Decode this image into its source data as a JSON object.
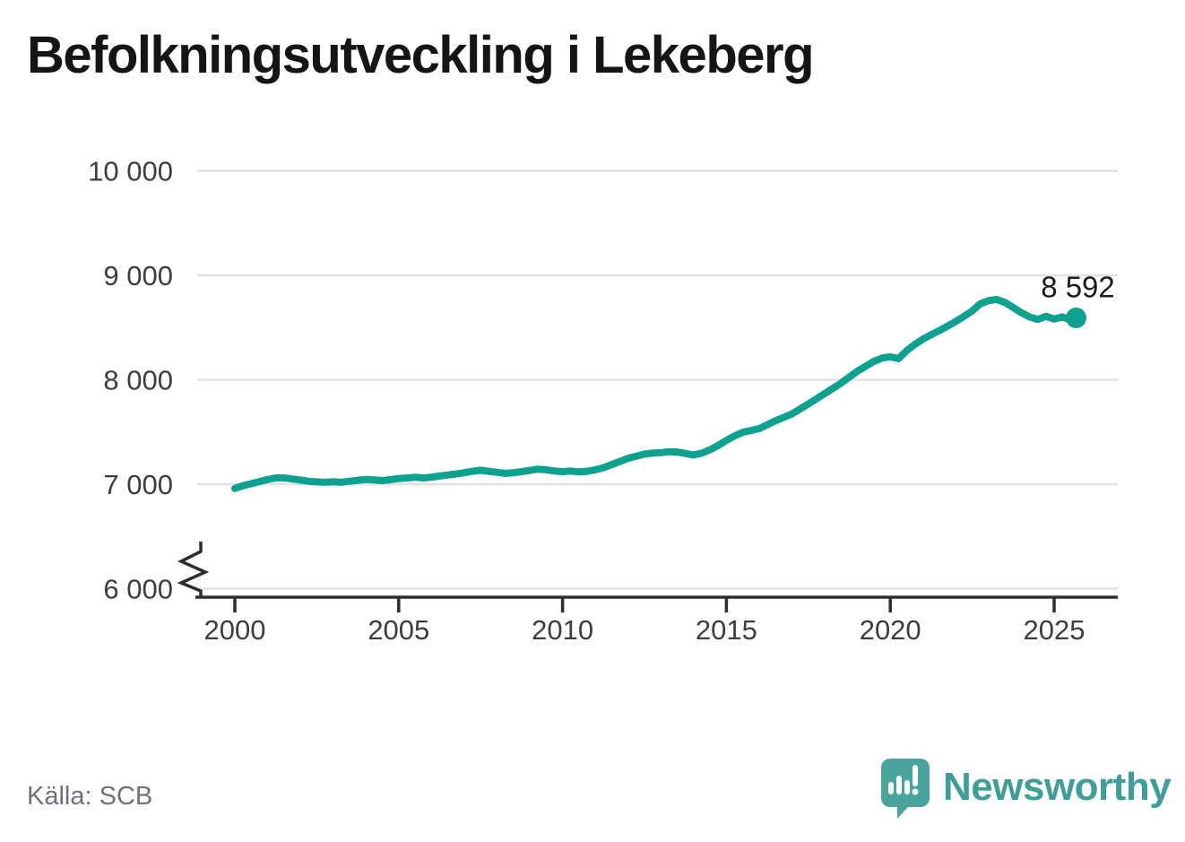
{
  "title": "Befolkningsutveckling i Lekeberg",
  "source": "Källa: SCB",
  "branding": {
    "name": "Newsworthy",
    "logo_icon": "newsworthy-speech-bubble-bars-icon",
    "icon_color": "#48a49d",
    "wordmark_color": "#3f9e98"
  },
  "chart_data": {
    "type": "line",
    "title": "Befolkningsutveckling i Lekeberg",
    "xlabel": "",
    "ylabel": "",
    "grid": true,
    "axis_break": true,
    "xlim": [
      1998.9,
      2026.9
    ],
    "ylim": [
      6000,
      10000
    ],
    "x_ticks": [
      2000,
      2005,
      2010,
      2015,
      2020,
      2025
    ],
    "x_tick_labels": [
      "2000",
      "2005",
      "2010",
      "2015",
      "2020",
      "2025"
    ],
    "y_ticks": [
      6000,
      7000,
      8000,
      9000,
      10000
    ],
    "y_tick_labels": [
      "6 000",
      "7 000",
      "8 000",
      "9 000",
      "10 000"
    ],
    "colors": {
      "line": "#0ea190",
      "grid": "#e2e2e2",
      "axis": "#2e2e2e",
      "tick_text": "#3d3d3d",
      "end_label_text": "#1a1a1a"
    },
    "end_point": {
      "x": 2025.67,
      "value": 8592,
      "label": "8 592"
    },
    "series": [
      {
        "name": "Befolkning i Lekeberg",
        "color": "#0ea190",
        "points": [
          [
            2000.0,
            6960
          ],
          [
            2000.25,
            6985
          ],
          [
            2000.5,
            7005
          ],
          [
            2000.75,
            7025
          ],
          [
            2001.0,
            7045
          ],
          [
            2001.25,
            7060
          ],
          [
            2001.5,
            7062
          ],
          [
            2001.75,
            7050
          ],
          [
            2002.0,
            7040
          ],
          [
            2002.25,
            7028
          ],
          [
            2002.5,
            7022
          ],
          [
            2002.75,
            7018
          ],
          [
            2003.0,
            7024
          ],
          [
            2003.25,
            7018
          ],
          [
            2003.5,
            7028
          ],
          [
            2003.75,
            7038
          ],
          [
            2004.0,
            7046
          ],
          [
            2004.25,
            7040
          ],
          [
            2004.5,
            7034
          ],
          [
            2004.75,
            7044
          ],
          [
            2005.0,
            7054
          ],
          [
            2005.25,
            7060
          ],
          [
            2005.5,
            7066
          ],
          [
            2005.75,
            7060
          ],
          [
            2006.0,
            7068
          ],
          [
            2006.25,
            7078
          ],
          [
            2006.5,
            7088
          ],
          [
            2006.75,
            7098
          ],
          [
            2007.0,
            7110
          ],
          [
            2007.25,
            7124
          ],
          [
            2007.5,
            7134
          ],
          [
            2007.75,
            7124
          ],
          [
            2008.0,
            7114
          ],
          [
            2008.25,
            7104
          ],
          [
            2008.5,
            7110
          ],
          [
            2008.75,
            7120
          ],
          [
            2009.0,
            7132
          ],
          [
            2009.25,
            7144
          ],
          [
            2009.5,
            7138
          ],
          [
            2009.75,
            7126
          ],
          [
            2010.0,
            7120
          ],
          [
            2010.25,
            7126
          ],
          [
            2010.5,
            7118
          ],
          [
            2010.75,
            7124
          ],
          [
            2011.0,
            7138
          ],
          [
            2011.25,
            7158
          ],
          [
            2011.5,
            7188
          ],
          [
            2011.75,
            7218
          ],
          [
            2012.0,
            7248
          ],
          [
            2012.25,
            7268
          ],
          [
            2012.5,
            7288
          ],
          [
            2012.75,
            7298
          ],
          [
            2013.0,
            7302
          ],
          [
            2013.25,
            7312
          ],
          [
            2013.5,
            7308
          ],
          [
            2013.75,
            7294
          ],
          [
            2014.0,
            7280
          ],
          [
            2014.25,
            7298
          ],
          [
            2014.5,
            7330
          ],
          [
            2014.75,
            7372
          ],
          [
            2015.0,
            7420
          ],
          [
            2015.25,
            7462
          ],
          [
            2015.5,
            7498
          ],
          [
            2015.75,
            7514
          ],
          [
            2016.0,
            7532
          ],
          [
            2016.25,
            7570
          ],
          [
            2016.5,
            7608
          ],
          [
            2016.75,
            7640
          ],
          [
            2017.0,
            7672
          ],
          [
            2017.25,
            7720
          ],
          [
            2017.5,
            7768
          ],
          [
            2017.75,
            7818
          ],
          [
            2018.0,
            7868
          ],
          [
            2018.25,
            7918
          ],
          [
            2018.5,
            7968
          ],
          [
            2018.75,
            8026
          ],
          [
            2019.0,
            8082
          ],
          [
            2019.25,
            8130
          ],
          [
            2019.5,
            8176
          ],
          [
            2019.75,
            8208
          ],
          [
            2020.0,
            8220
          ],
          [
            2020.25,
            8202
          ],
          [
            2020.5,
            8278
          ],
          [
            2020.75,
            8338
          ],
          [
            2021.0,
            8390
          ],
          [
            2021.25,
            8432
          ],
          [
            2021.5,
            8470
          ],
          [
            2021.75,
            8514
          ],
          [
            2022.0,
            8558
          ],
          [
            2022.25,
            8608
          ],
          [
            2022.5,
            8658
          ],
          [
            2022.75,
            8728
          ],
          [
            2023.0,
            8758
          ],
          [
            2023.25,
            8768
          ],
          [
            2023.5,
            8740
          ],
          [
            2023.75,
            8692
          ],
          [
            2024.0,
            8642
          ],
          [
            2024.25,
            8602
          ],
          [
            2024.5,
            8578
          ],
          [
            2024.75,
            8608
          ],
          [
            2025.0,
            8580
          ],
          [
            2025.25,
            8602
          ],
          [
            2025.5,
            8572
          ],
          [
            2025.67,
            8592
          ]
        ]
      }
    ]
  }
}
